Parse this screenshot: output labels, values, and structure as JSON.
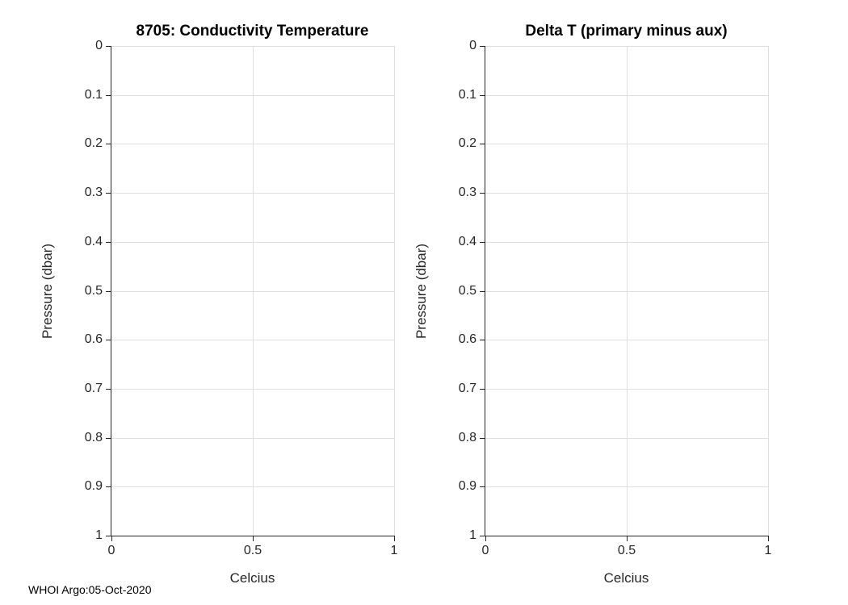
{
  "figure": {
    "background": "#ffffff",
    "footer": "WHOI Argo:05-Oct-2020"
  },
  "colors": {
    "axis": "#262626",
    "grid": "#dfdfdf",
    "tick_label": "#262626",
    "title": "#000000"
  },
  "chart_data": [
    {
      "type": "line",
      "title": "8705: Conductivity Temperature",
      "xlabel": "Celcius",
      "ylabel": "Pressure (dbar)",
      "xlim": [
        0,
        1
      ],
      "ylim": [
        0,
        1
      ],
      "y_axis_reversed": true,
      "grid": true,
      "x_ticks": [
        0,
        0.5,
        1
      ],
      "x_tick_labels": [
        "0",
        "0.5",
        "1"
      ],
      "y_ticks": [
        0,
        0.1,
        0.2,
        0.3,
        0.4,
        0.5,
        0.6,
        0.7,
        0.8,
        0.9,
        1
      ],
      "y_tick_labels": [
        "0",
        "0.1",
        "0.2",
        "0.3",
        "0.4",
        "0.5",
        "0.6",
        "0.7",
        "0.8",
        "0.9",
        "1"
      ],
      "series": []
    },
    {
      "type": "line",
      "title": "Delta T (primary minus aux)",
      "xlabel": "Celcius",
      "ylabel": "Pressure (dbar)",
      "xlim": [
        0,
        1
      ],
      "ylim": [
        0,
        1
      ],
      "y_axis_reversed": true,
      "grid": true,
      "x_ticks": [
        0,
        0.5,
        1
      ],
      "x_tick_labels": [
        "0",
        "0.5",
        "1"
      ],
      "y_ticks": [
        0,
        0.1,
        0.2,
        0.3,
        0.4,
        0.5,
        0.6,
        0.7,
        0.8,
        0.9,
        1
      ],
      "y_tick_labels": [
        "0",
        "0.1",
        "0.2",
        "0.3",
        "0.4",
        "0.5",
        "0.6",
        "0.7",
        "0.8",
        "0.9",
        "1"
      ],
      "series": []
    }
  ]
}
